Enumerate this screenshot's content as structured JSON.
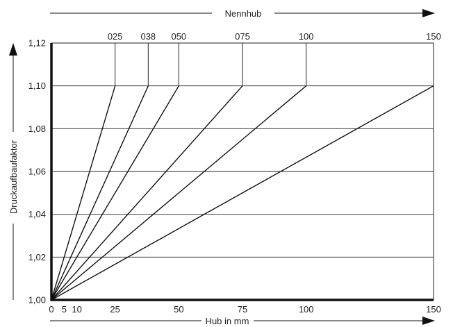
{
  "chart_data": {
    "type": "line",
    "xlabel": "Hub in mm",
    "ylabel": "Druckaufbaufaktor",
    "top_axis_label": "Nennhub",
    "xlim": [
      0,
      150
    ],
    "ylim": [
      1.0,
      1.12
    ],
    "x_ticks": [
      "0",
      "5",
      "10",
      "25",
      "50",
      "75",
      "100",
      "150"
    ],
    "x_tick_values": [
      0,
      5,
      10,
      25,
      50,
      75,
      100,
      150
    ],
    "y_ticks": [
      "1,00",
      "1,02",
      "1,04",
      "1,06",
      "1,08",
      "1,10",
      "1,12"
    ],
    "y_tick_values": [
      1.0,
      1.02,
      1.04,
      1.06,
      1.08,
      1.1,
      1.12
    ],
    "grid": true,
    "series": [
      {
        "name": "025",
        "x": [
          0,
          25
        ],
        "y": [
          1.0,
          1.1
        ]
      },
      {
        "name": "038",
        "x": [
          0,
          38
        ],
        "y": [
          1.0,
          1.1
        ]
      },
      {
        "name": "050",
        "x": [
          0,
          50
        ],
        "y": [
          1.0,
          1.1
        ]
      },
      {
        "name": "075",
        "x": [
          0,
          75
        ],
        "y": [
          1.0,
          1.1
        ]
      },
      {
        "name": "100",
        "x": [
          0,
          100
        ],
        "y": [
          1.0,
          1.1
        ]
      },
      {
        "name": "150",
        "x": [
          0,
          150
        ],
        "y": [
          1.0,
          1.1
        ]
      }
    ]
  }
}
